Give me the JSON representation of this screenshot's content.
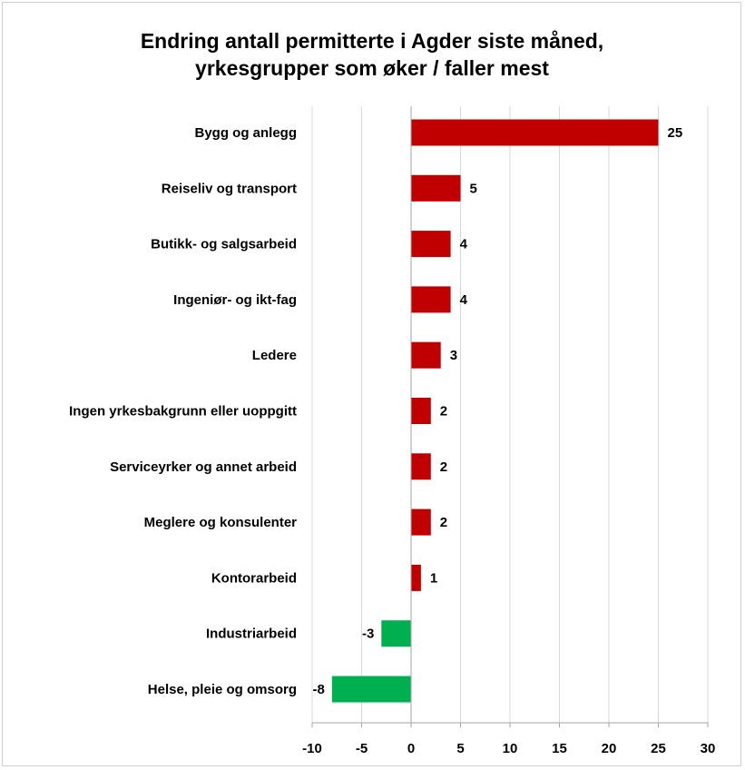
{
  "chart_data": {
    "type": "bar",
    "orientation": "horizontal",
    "title_lines": [
      "Endring antall permitterte i Agder siste måned,",
      "yrkesgrupper som øker / faller mest"
    ],
    "categories": [
      "Bygg og anlegg",
      "Reiseliv og transport",
      "Butikk- og salgsarbeid",
      "Ingeniør- og ikt-fag",
      "Ledere",
      "Ingen yrkesbakgrunn eller uoppgitt",
      "Serviceyrker og annet arbeid",
      "Meglere og konsulenter",
      "Kontorarbeid",
      "Industriarbeid",
      "Helse, pleie og omsorg"
    ],
    "values": [
      25,
      5,
      4,
      4,
      3,
      2,
      2,
      2,
      1,
      -3,
      -8
    ],
    "value_labels": [
      "25",
      "5",
      "4",
      "4",
      "3",
      "2",
      "2",
      "2",
      "1",
      "-3",
      "-8"
    ],
    "xlim": [
      -10,
      30
    ],
    "xticks": [
      -10,
      -5,
      0,
      5,
      10,
      15,
      20,
      25,
      30
    ],
    "xtick_labels": [
      "-10",
      "-5",
      "0",
      "5",
      "10",
      "15",
      "20",
      "25",
      "30"
    ],
    "grid": "vertical",
    "legend": "none",
    "colors": {
      "positive": "#c00000",
      "negative": "#00b050",
      "grid": "#d9d9d9",
      "axis": "#a6a6a6"
    }
  }
}
